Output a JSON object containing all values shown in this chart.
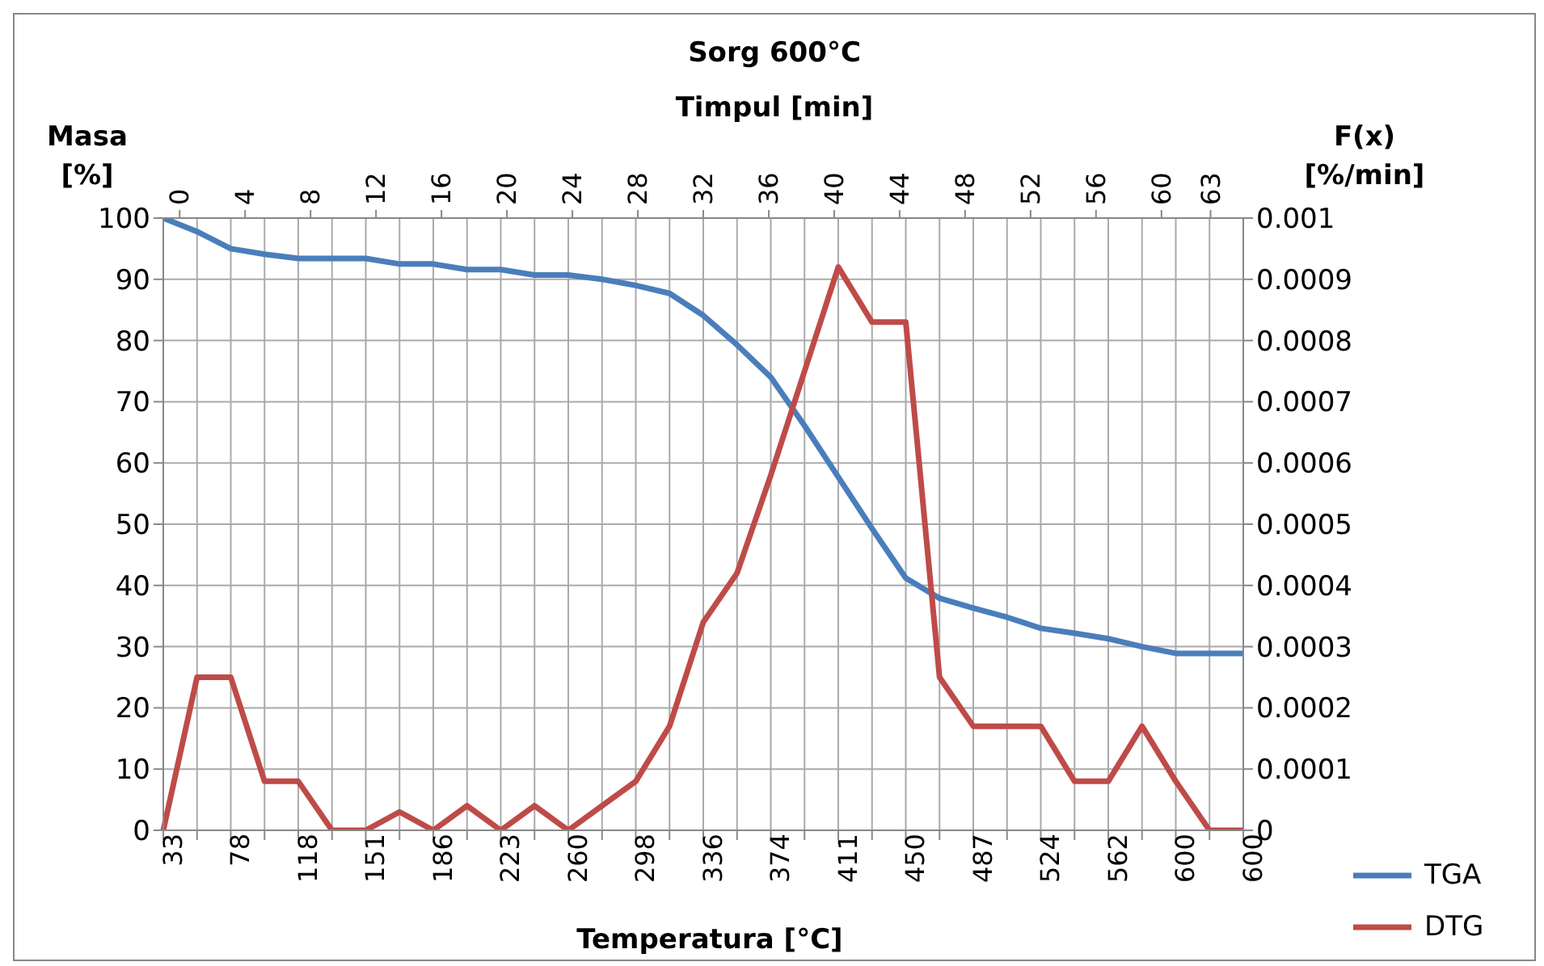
{
  "chart_data": {
    "type": "line",
    "title": "Sorg 600°C",
    "xlabel": "Temperatura [°C]",
    "x2label": "Timpul [min]",
    "ylabel": "Masa [%]",
    "y2label": "F(x) [%/min]",
    "categories": [
      "33",
      null,
      "78",
      null,
      "118",
      null,
      "151",
      null,
      "186",
      null,
      "223",
      null,
      "260",
      null,
      "298",
      null,
      "336",
      null,
      "374",
      null,
      "411",
      null,
      "450",
      null,
      "487",
      null,
      "524",
      null,
      "562",
      null,
      "600",
      null,
      "600"
    ],
    "x2lim": [
      -1,
      65
    ],
    "x2ticks": [
      0,
      4,
      8,
      12,
      16,
      20,
      24,
      28,
      32,
      36,
      40,
      44,
      48,
      52,
      56,
      60,
      63
    ],
    "ylim": [
      0,
      100
    ],
    "yticks": [
      0,
      10,
      20,
      30,
      40,
      50,
      60,
      70,
      80,
      90,
      100
    ],
    "y2lim": [
      0,
      0.001
    ],
    "y2ticks": [
      0,
      0.0001,
      0.0002,
      0.0003,
      0.0004,
      0.0005,
      0.0006,
      0.0007,
      0.0008,
      0.0009,
      0.001
    ],
    "grid": true,
    "legend": "bottom right",
    "marker": "none",
    "line_style": "solid",
    "series": [
      {
        "name": "TGA",
        "color": "#4a7ebb",
        "values": [
          100,
          97.8,
          95,
          94.1,
          93.4,
          93.4,
          93.4,
          92.5,
          92.5,
          91.6,
          91.6,
          90.7,
          90.7,
          90,
          89,
          87.7,
          84.1,
          79.3,
          74,
          66.1,
          57.7,
          49.3,
          41.2,
          37.9,
          36.3,
          34.8,
          33,
          32.2,
          31.3,
          30,
          28.9,
          28.9,
          28.9
        ]
      },
      {
        "name": "DTG",
        "color": "#be4b48",
        "axis": "y2",
        "values": [
          0,
          0.00025,
          0.00025,
          8e-05,
          8e-05,
          0,
          0,
          3e-05,
          0,
          4e-05,
          0,
          4e-05,
          0,
          4e-05,
          8e-05,
          0.00017,
          0.00034,
          0.00042,
          0.00058,
          0.00075,
          0.00092,
          0.00083,
          0.00083,
          0.00025,
          0.00017,
          0.00017,
          0.00017,
          8e-05,
          8e-05,
          0.00017,
          8e-05,
          0,
          0
        ]
      }
    ]
  }
}
